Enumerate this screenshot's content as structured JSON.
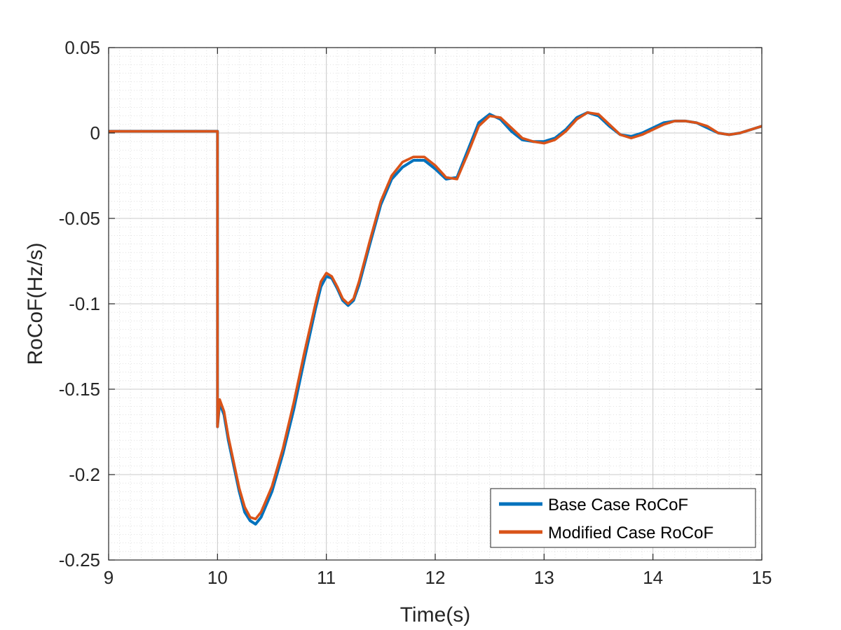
{
  "chart_data": {
    "type": "line",
    "xlabel": "Time(s)",
    "ylabel": "RoCoF(Hz/s)",
    "xlim": [
      9,
      15
    ],
    "ylim": [
      -0.25,
      0.05
    ],
    "xticks": [
      9,
      10,
      11,
      12,
      13,
      14,
      15
    ],
    "yticks": [
      0.05,
      0,
      -0.05,
      -0.1,
      -0.15,
      -0.2,
      -0.25
    ],
    "xtick_labels": [
      "9",
      "10",
      "11",
      "12",
      "13",
      "14",
      "15"
    ],
    "ytick_labels": [
      "0.05",
      "0",
      "-0.05",
      "-0.1",
      "-0.15",
      "-0.2",
      "-0.25"
    ],
    "grid": true,
    "minor_grid": true,
    "legend_position": "bottom-right",
    "series": [
      {
        "name": "Base Case RoCoF",
        "color": "#0072BD",
        "x": [
          9.0,
          9.99,
          10.0,
          10.0,
          10.02,
          10.06,
          10.1,
          10.15,
          10.2,
          10.25,
          10.3,
          10.35,
          10.4,
          10.5,
          10.6,
          10.7,
          10.8,
          10.9,
          10.95,
          11.0,
          11.05,
          11.1,
          11.15,
          11.2,
          11.25,
          11.3,
          11.4,
          11.5,
          11.6,
          11.7,
          11.8,
          11.9,
          12.0,
          12.1,
          12.2,
          12.3,
          12.4,
          12.5,
          12.6,
          12.7,
          12.8,
          12.9,
          13.0,
          13.1,
          13.2,
          13.3,
          13.4,
          13.5,
          13.6,
          13.7,
          13.8,
          13.9,
          14.0,
          14.1,
          14.2,
          14.3,
          14.4,
          14.5,
          14.6,
          14.7,
          14.8,
          14.9,
          15.0
        ],
        "y": [
          0.001,
          0.001,
          0.001,
          -0.172,
          -0.158,
          -0.165,
          -0.18,
          -0.195,
          -0.21,
          -0.222,
          -0.227,
          -0.229,
          -0.225,
          -0.21,
          -0.188,
          -0.162,
          -0.132,
          -0.103,
          -0.09,
          -0.084,
          -0.085,
          -0.091,
          -0.098,
          -0.101,
          -0.098,
          -0.089,
          -0.065,
          -0.042,
          -0.027,
          -0.02,
          -0.016,
          -0.016,
          -0.021,
          -0.027,
          -0.026,
          -0.01,
          0.006,
          0.011,
          0.008,
          0.001,
          -0.004,
          -0.005,
          -0.005,
          -0.003,
          0.002,
          0.009,
          0.012,
          0.01,
          0.004,
          -0.001,
          -0.002,
          0.0,
          0.003,
          0.006,
          0.007,
          0.007,
          0.006,
          0.003,
          0.0,
          -0.001,
          0.0,
          0.002,
          0.004
        ]
      },
      {
        "name": "Modified Case RoCoF",
        "color": "#D95319",
        "x": [
          9.0,
          9.99,
          10.0,
          10.0,
          10.02,
          10.06,
          10.1,
          10.15,
          10.2,
          10.25,
          10.3,
          10.35,
          10.4,
          10.5,
          10.6,
          10.7,
          10.8,
          10.9,
          10.95,
          11.0,
          11.05,
          11.1,
          11.15,
          11.2,
          11.25,
          11.3,
          11.4,
          11.5,
          11.6,
          11.7,
          11.8,
          11.9,
          12.0,
          12.1,
          12.2,
          12.3,
          12.4,
          12.5,
          12.6,
          12.7,
          12.8,
          12.9,
          13.0,
          13.1,
          13.2,
          13.3,
          13.4,
          13.5,
          13.6,
          13.7,
          13.8,
          13.9,
          14.0,
          14.1,
          14.2,
          14.3,
          14.4,
          14.5,
          14.6,
          14.7,
          14.8,
          14.9,
          15.0
        ],
        "y": [
          0.001,
          0.001,
          0.001,
          -0.172,
          -0.156,
          -0.163,
          -0.178,
          -0.193,
          -0.208,
          -0.219,
          -0.225,
          -0.226,
          -0.222,
          -0.207,
          -0.185,
          -0.158,
          -0.128,
          -0.1,
          -0.087,
          -0.082,
          -0.084,
          -0.09,
          -0.097,
          -0.1,
          -0.097,
          -0.087,
          -0.063,
          -0.04,
          -0.025,
          -0.017,
          -0.014,
          -0.014,
          -0.019,
          -0.026,
          -0.027,
          -0.012,
          0.004,
          0.01,
          0.009,
          0.003,
          -0.003,
          -0.005,
          -0.006,
          -0.004,
          0.001,
          0.008,
          0.012,
          0.011,
          0.005,
          -0.001,
          -0.003,
          -0.001,
          0.002,
          0.005,
          0.007,
          0.007,
          0.006,
          0.004,
          0.0,
          -0.001,
          0.0,
          0.002,
          0.004
        ]
      }
    ]
  }
}
